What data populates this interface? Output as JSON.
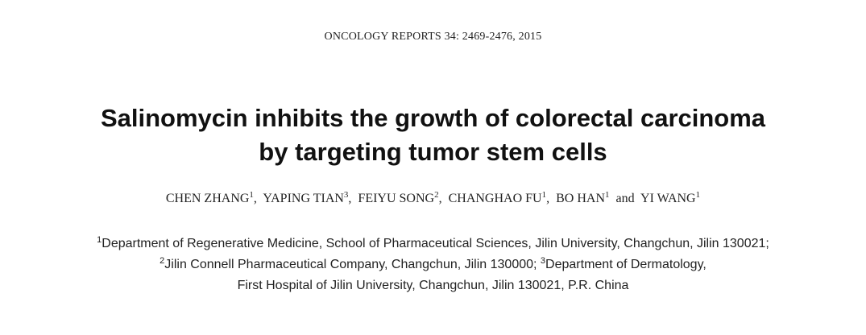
{
  "header": {
    "journal_citation": "ONCOLOGY REPORTS 34: 2469-2476, 2015"
  },
  "title": {
    "line1": "Salinomycin inhibits the growth of colorectal carcinoma",
    "line2": "by targeting tumor stem cells"
  },
  "authors": [
    {
      "name": "CHEN ZHANG",
      "sup": "1",
      "sep": ",  "
    },
    {
      "name": "YAPING TIAN",
      "sup": "3",
      "sep": ",  "
    },
    {
      "name": "FEIYU SONG",
      "sup": "2",
      "sep": ",  "
    },
    {
      "name": "CHANGHAO FU",
      "sup": "1",
      "sep": ",  "
    },
    {
      "name": "BO HAN",
      "sup": "1",
      "sep": "  and  "
    },
    {
      "name": "YI WANG",
      "sup": "1",
      "sep": ""
    }
  ],
  "affiliations": {
    "line1": {
      "sup": "1",
      "text": "Department of Regenerative Medicine, School of Pharmaceutical Sciences, Jilin University, Changchun, Jilin 130021;"
    },
    "line2a": {
      "sup": "2",
      "text": "Jilin Connell Pharmaceutical Company, Changchun, Jilin 130000; "
    },
    "line2b": {
      "sup": "3",
      "text": "Department of Dermatology,"
    },
    "line3": {
      "text": "First Hospital of Jilin University, Changchun, Jilin 130021, P.R. China"
    }
  }
}
